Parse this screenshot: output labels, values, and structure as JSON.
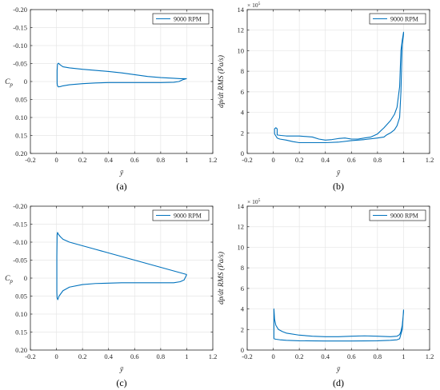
{
  "colors": {
    "series": "#0072BD",
    "grid": "#e6e6e6",
    "axis": "#262626"
  },
  "chart_data": [
    {
      "type": "line",
      "panel": "(a)",
      "xlabel": "ȳ",
      "ylabel": "Cp",
      "xlim": [
        -0.2,
        1.2
      ],
      "ylim": [
        -0.2,
        0.2
      ],
      "y_reversed": true,
      "grid": true,
      "legend_position": "top-right",
      "x_ticks": [
        "-0.2",
        "0",
        "0.2",
        "0.4",
        "0.6",
        "0.8",
        "1",
        "1.2"
      ],
      "y_ticks": [
        "-0.20",
        "-0.15",
        "-0.10",
        "-0.05",
        "0",
        "0.05",
        "0.10",
        "0.15",
        "0.20"
      ],
      "series": [
        {
          "name": "9000 RPM",
          "x": [
            1.0,
            0.95,
            0.9,
            0.8,
            0.7,
            0.6,
            0.5,
            0.4,
            0.3,
            0.2,
            0.1,
            0.05,
            0.03,
            0.015,
            0.008,
            0.005,
            0.005,
            0.008,
            0.015,
            0.03,
            0.05,
            0.1,
            0.2,
            0.3,
            0.4,
            0.5,
            0.6,
            0.7,
            0.8,
            0.9,
            0.94,
            0.97,
            1.0
          ],
          "y": [
            -0.008,
            -0.008,
            -0.009,
            -0.011,
            -0.014,
            -0.019,
            -0.024,
            -0.028,
            -0.031,
            -0.034,
            -0.038,
            -0.041,
            -0.046,
            -0.051,
            -0.048,
            -0.03,
            0.005,
            0.012,
            0.015,
            0.014,
            0.012,
            0.009,
            0.006,
            0.004,
            0.003,
            0.003,
            0.003,
            0.003,
            0.003,
            0.002,
            0.0,
            -0.005,
            -0.008
          ]
        }
      ]
    },
    {
      "type": "line",
      "panel": "(b)",
      "xlabel": "ȳ",
      "ylabel": "dp/dt RMS (Pa/s)",
      "y_multiplier": "× 10^5",
      "xlim": [
        -0.2,
        1.2
      ],
      "ylim": [
        0,
        14
      ],
      "grid": true,
      "legend_position": "top-right",
      "x_ticks": [
        "-0.2",
        "0",
        "0.2",
        "0.4",
        "0.6",
        "0.8",
        "1",
        "1.2"
      ],
      "y_ticks": [
        "0",
        "2",
        "4",
        "6",
        "8",
        "10",
        "12",
        "14"
      ],
      "series": [
        {
          "name": "9000 RPM",
          "x": [
            0.01,
            0.01,
            0.02,
            0.03,
            0.03,
            0.06,
            0.1,
            0.2,
            0.3,
            0.35,
            0.4,
            0.45,
            0.5,
            0.55,
            0.6,
            0.65,
            0.7,
            0.75,
            0.8,
            0.85,
            0.9,
            0.93,
            0.95,
            0.96,
            0.97,
            0.98,
            0.99,
            1.0,
            1.0,
            0.99,
            0.98,
            0.97,
            0.95,
            0.93,
            0.9,
            0.87,
            0.85,
            0.8,
            0.7,
            0.6,
            0.5,
            0.4,
            0.3,
            0.2,
            0.15,
            0.1,
            0.05,
            0.03,
            0.02,
            0.01
          ],
          "y": [
            1.9,
            2.4,
            2.5,
            2.4,
            1.8,
            1.75,
            1.7,
            1.7,
            1.6,
            1.4,
            1.3,
            1.35,
            1.45,
            1.5,
            1.4,
            1.4,
            1.5,
            1.6,
            1.9,
            2.5,
            3.2,
            3.8,
            4.5,
            5.5,
            6.5,
            10.0,
            11.0,
            11.8,
            11.6,
            10.6,
            6.0,
            3.5,
            2.7,
            2.3,
            2.0,
            1.8,
            1.6,
            1.5,
            1.35,
            1.25,
            1.1,
            1.05,
            1.05,
            1.05,
            1.15,
            1.3,
            1.4,
            1.5,
            1.7,
            1.9
          ]
        }
      ]
    },
    {
      "type": "line",
      "panel": "(c)",
      "xlabel": "ȳ",
      "ylabel": "Cp",
      "xlim": [
        -0.2,
        1.2
      ],
      "ylim": [
        -0.2,
        0.2
      ],
      "y_reversed": true,
      "grid": true,
      "legend_position": "top-right",
      "x_ticks": [
        "-0.2",
        "0",
        "0.2",
        "0.4",
        "0.6",
        "0.8",
        "1",
        "1.2"
      ],
      "y_ticks": [
        "-0.20",
        "-0.15",
        "-0.10",
        "-0.05",
        "0",
        "0.05",
        "0.10",
        "0.15",
        "0.20"
      ],
      "series": [
        {
          "name": "9000 RPM",
          "x": [
            1.0,
            0.9,
            0.8,
            0.7,
            0.6,
            0.5,
            0.4,
            0.3,
            0.2,
            0.1,
            0.05,
            0.03,
            0.015,
            0.008,
            0.005,
            0.003,
            0.003,
            0.005,
            0.01,
            0.02,
            0.05,
            0.1,
            0.2,
            0.3,
            0.5,
            0.7,
            0.8,
            0.9,
            0.95,
            0.98,
            1.0
          ],
          "y": [
            -0.01,
            -0.02,
            -0.03,
            -0.04,
            -0.05,
            -0.06,
            -0.07,
            -0.08,
            -0.09,
            -0.1,
            -0.108,
            -0.115,
            -0.122,
            -0.127,
            -0.12,
            -0.06,
            0.04,
            0.055,
            0.06,
            0.05,
            0.035,
            0.025,
            0.018,
            0.015,
            0.013,
            0.013,
            0.013,
            0.013,
            0.01,
            0.005,
            -0.01
          ]
        }
      ]
    },
    {
      "type": "line",
      "panel": "(d)",
      "xlabel": "ȳ",
      "ylabel": "dp/dt RMS (Pa/s)",
      "y_multiplier": "× 10^5",
      "xlim": [
        -0.2,
        1.2
      ],
      "ylim": [
        0,
        14
      ],
      "grid": true,
      "legend_position": "top-right",
      "x_ticks": [
        "-0.2",
        "0",
        "0.2",
        "0.4",
        "0.6",
        "0.8",
        "1",
        "1.2"
      ],
      "y_ticks": [
        "0",
        "2",
        "4",
        "6",
        "8",
        "10",
        "12",
        "14"
      ],
      "series": [
        {
          "name": "9000 RPM",
          "x": [
            0.005,
            0.005,
            0.01,
            0.02,
            0.04,
            0.07,
            0.1,
            0.2,
            0.3,
            0.4,
            0.5,
            0.6,
            0.7,
            0.8,
            0.9,
            0.95,
            0.97,
            0.98,
            0.99,
            1.0,
            1.0,
            0.99,
            0.97,
            0.95,
            0.9,
            0.8,
            0.6,
            0.4,
            0.2,
            0.1,
            0.05,
            0.02,
            0.005
          ],
          "y": [
            1.1,
            4.0,
            3.0,
            2.4,
            2.0,
            1.8,
            1.65,
            1.45,
            1.35,
            1.3,
            1.3,
            1.35,
            1.38,
            1.35,
            1.3,
            1.35,
            1.5,
            1.8,
            2.4,
            3.7,
            3.9,
            2.0,
            1.1,
            1.0,
            0.95,
            0.9,
            0.88,
            0.88,
            0.9,
            0.95,
            1.0,
            1.05,
            1.1
          ]
        }
      ]
    }
  ]
}
